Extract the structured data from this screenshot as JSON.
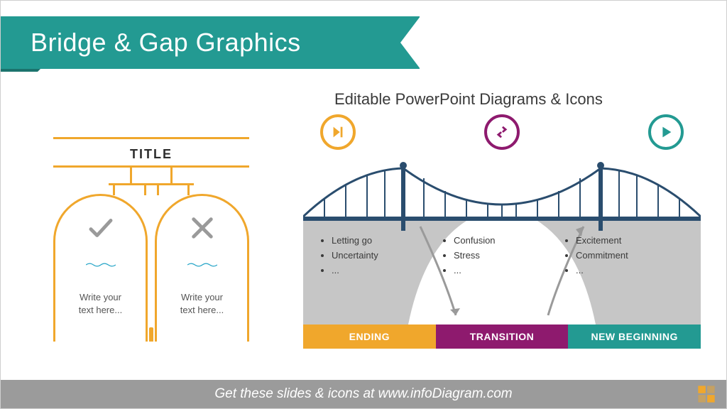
{
  "colors": {
    "teal": "#239a92",
    "teal_dark": "#1b736d",
    "orange": "#f0a72c",
    "magenta": "#8e1a6e",
    "navy": "#2a4d6e",
    "grey_shape": "#c6c6c6",
    "footer_grey": "#9b9b9b"
  },
  "header": {
    "title": "Bridge & Gap Graphics",
    "subtitle": "Editable PowerPoint Diagrams & Icons"
  },
  "sign_diagram": {
    "title": "TITLE",
    "arches": [
      {
        "icon": "check",
        "placeholder": "Write your\ntext here..."
      },
      {
        "icon": "cross",
        "placeholder": "Write your\ntext here..."
      }
    ],
    "line_color": "#f0a72c",
    "wave_color": "#2aa7c9",
    "icon_color": "#9a9a9a"
  },
  "bridge_diagram": {
    "icons": [
      {
        "name": "skip-forward-icon",
        "ring": "#f0a72c",
        "glyph": "#f0a72c"
      },
      {
        "name": "swap-arrows-icon",
        "ring": "#8e1a6e",
        "glyph": "#8e1a6e"
      },
      {
        "name": "play-icon",
        "ring": "#239a92",
        "glyph": "#239a92"
      }
    ],
    "columns": [
      {
        "items": [
          "Letting go",
          "Uncertainty",
          "..."
        ]
      },
      {
        "items": [
          "Confusion",
          "Stress",
          "..."
        ]
      },
      {
        "items": [
          "Excitement",
          "Commitment",
          "..."
        ]
      }
    ],
    "bands": [
      {
        "label": "ENDING",
        "color": "#f0a72c"
      },
      {
        "label": "TRANSITION",
        "color": "#8e1a6e"
      },
      {
        "label": "NEW BEGINNING",
        "color": "#239a92"
      }
    ],
    "bridge_color": "#2a4d6e",
    "cliff_color": "#c6c6c6",
    "arrow_color": "#9a9a9a"
  },
  "footer": {
    "prefix": "Get these slides & icons at ",
    "url": "www.infoDiagram.com"
  }
}
